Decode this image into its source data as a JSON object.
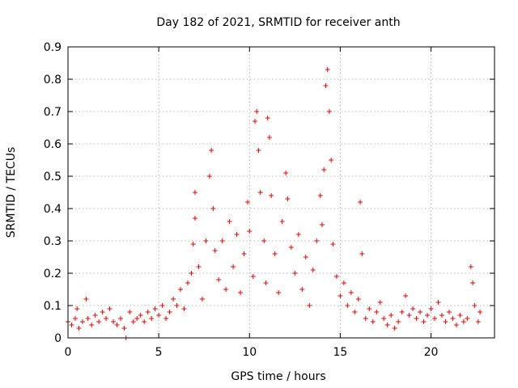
{
  "chart_data": {
    "type": "scatter",
    "title": "Day 182 of 2021, SRMTID for receiver anth",
    "xlabel": "GPS time / hours",
    "ylabel": "SRMTID / TECUs",
    "xlim": [
      0,
      23.5
    ],
    "ylim": [
      0,
      0.9
    ],
    "xticks": [
      0,
      5,
      10,
      15,
      20
    ],
    "xtick_labels": [
      "0",
      "5",
      "10",
      "15",
      "20"
    ],
    "yticks": [
      0,
      0.1,
      0.2,
      0.3,
      0.4,
      0.5,
      0.6,
      0.7,
      0.8,
      0.9
    ],
    "ytick_labels": [
      "0",
      "0.1",
      "0.2",
      "0.3",
      "0.4",
      "0.5",
      "0.6",
      "0.7",
      "0.8",
      "0.9"
    ],
    "grid": true,
    "marker": "+",
    "color": "#ee0000",
    "series": [
      {
        "name": "SRMTID",
        "points": [
          [
            0.0,
            0.05
          ],
          [
            0.2,
            0.04
          ],
          [
            0.4,
            0.06
          ],
          [
            0.5,
            0.09
          ],
          [
            0.6,
            0.03
          ],
          [
            0.8,
            0.05
          ],
          [
            1.0,
            0.12
          ],
          [
            1.1,
            0.06
          ],
          [
            1.3,
            0.04
          ],
          [
            1.5,
            0.07
          ],
          [
            1.7,
            0.05
          ],
          [
            1.9,
            0.08
          ],
          [
            2.1,
            0.06
          ],
          [
            2.3,
            0.09
          ],
          [
            2.5,
            0.05
          ],
          [
            2.7,
            0.04
          ],
          [
            2.9,
            0.06
          ],
          [
            3.1,
            0.03
          ],
          [
            3.2,
            0.0
          ],
          [
            3.4,
            0.08
          ],
          [
            3.6,
            0.05
          ],
          [
            3.8,
            0.06
          ],
          [
            4.0,
            0.07
          ],
          [
            4.2,
            0.05
          ],
          [
            4.4,
            0.08
          ],
          [
            4.6,
            0.06
          ],
          [
            4.8,
            0.09
          ],
          [
            5.0,
            0.07
          ],
          [
            5.2,
            0.1
          ],
          [
            5.4,
            0.06
          ],
          [
            5.6,
            0.08
          ],
          [
            5.8,
            0.12
          ],
          [
            6.0,
            0.1
          ],
          [
            6.2,
            0.15
          ],
          [
            6.4,
            0.09
          ],
          [
            6.6,
            0.17
          ],
          [
            6.8,
            0.2
          ],
          [
            6.9,
            0.29
          ],
          [
            7.0,
            0.45
          ],
          [
            7.0,
            0.37
          ],
          [
            7.2,
            0.22
          ],
          [
            7.4,
            0.12
          ],
          [
            7.6,
            0.3
          ],
          [
            7.8,
            0.5
          ],
          [
            7.9,
            0.58
          ],
          [
            8.0,
            0.4
          ],
          [
            8.1,
            0.27
          ],
          [
            8.3,
            0.18
          ],
          [
            8.5,
            0.3
          ],
          [
            8.7,
            0.15
          ],
          [
            8.9,
            0.36
          ],
          [
            9.1,
            0.22
          ],
          [
            9.3,
            0.32
          ],
          [
            9.5,
            0.14
          ],
          [
            9.7,
            0.26
          ],
          [
            9.9,
            0.42
          ],
          [
            10.0,
            0.33
          ],
          [
            10.2,
            0.19
          ],
          [
            10.3,
            0.67
          ],
          [
            10.4,
            0.7
          ],
          [
            10.5,
            0.58
          ],
          [
            10.6,
            0.45
          ],
          [
            10.8,
            0.3
          ],
          [
            10.9,
            0.17
          ],
          [
            11.0,
            0.68
          ],
          [
            11.1,
            0.62
          ],
          [
            11.2,
            0.44
          ],
          [
            11.4,
            0.26
          ],
          [
            11.6,
            0.14
          ],
          [
            11.8,
            0.36
          ],
          [
            12.0,
            0.51
          ],
          [
            12.1,
            0.43
          ],
          [
            12.3,
            0.28
          ],
          [
            12.5,
            0.2
          ],
          [
            12.7,
            0.32
          ],
          [
            12.9,
            0.15
          ],
          [
            13.1,
            0.25
          ],
          [
            13.3,
            0.1
          ],
          [
            13.5,
            0.21
          ],
          [
            13.7,
            0.3
          ],
          [
            13.9,
            0.44
          ],
          [
            14.0,
            0.35
          ],
          [
            14.1,
            0.52
          ],
          [
            14.2,
            0.78
          ],
          [
            14.3,
            0.83
          ],
          [
            14.4,
            0.7
          ],
          [
            14.5,
            0.55
          ],
          [
            14.6,
            0.29
          ],
          [
            14.8,
            0.19
          ],
          [
            15.0,
            0.13
          ],
          [
            15.2,
            0.17
          ],
          [
            15.4,
            0.1
          ],
          [
            15.6,
            0.14
          ],
          [
            15.8,
            0.08
          ],
          [
            16.0,
            0.12
          ],
          [
            16.1,
            0.42
          ],
          [
            16.2,
            0.26
          ],
          [
            16.4,
            0.06
          ],
          [
            16.6,
            0.09
          ],
          [
            16.8,
            0.05
          ],
          [
            17.0,
            0.08
          ],
          [
            17.2,
            0.11
          ],
          [
            17.4,
            0.06
          ],
          [
            17.6,
            0.04
          ],
          [
            17.8,
            0.07
          ],
          [
            18.0,
            0.03
          ],
          [
            18.2,
            0.05
          ],
          [
            18.4,
            0.08
          ],
          [
            18.6,
            0.13
          ],
          [
            18.8,
            0.07
          ],
          [
            19.0,
            0.09
          ],
          [
            19.2,
            0.06
          ],
          [
            19.4,
            0.08
          ],
          [
            19.6,
            0.05
          ],
          [
            19.8,
            0.07
          ],
          [
            20.0,
            0.09
          ],
          [
            20.2,
            0.06
          ],
          [
            20.4,
            0.11
          ],
          [
            20.6,
            0.07
          ],
          [
            20.8,
            0.05
          ],
          [
            21.0,
            0.08
          ],
          [
            21.2,
            0.06
          ],
          [
            21.4,
            0.04
          ],
          [
            21.6,
            0.07
          ],
          [
            21.8,
            0.05
          ],
          [
            22.0,
            0.06
          ],
          [
            22.2,
            0.22
          ],
          [
            22.3,
            0.17
          ],
          [
            22.4,
            0.1
          ],
          [
            22.6,
            0.05
          ],
          [
            22.7,
            0.08
          ]
        ]
      }
    ]
  }
}
